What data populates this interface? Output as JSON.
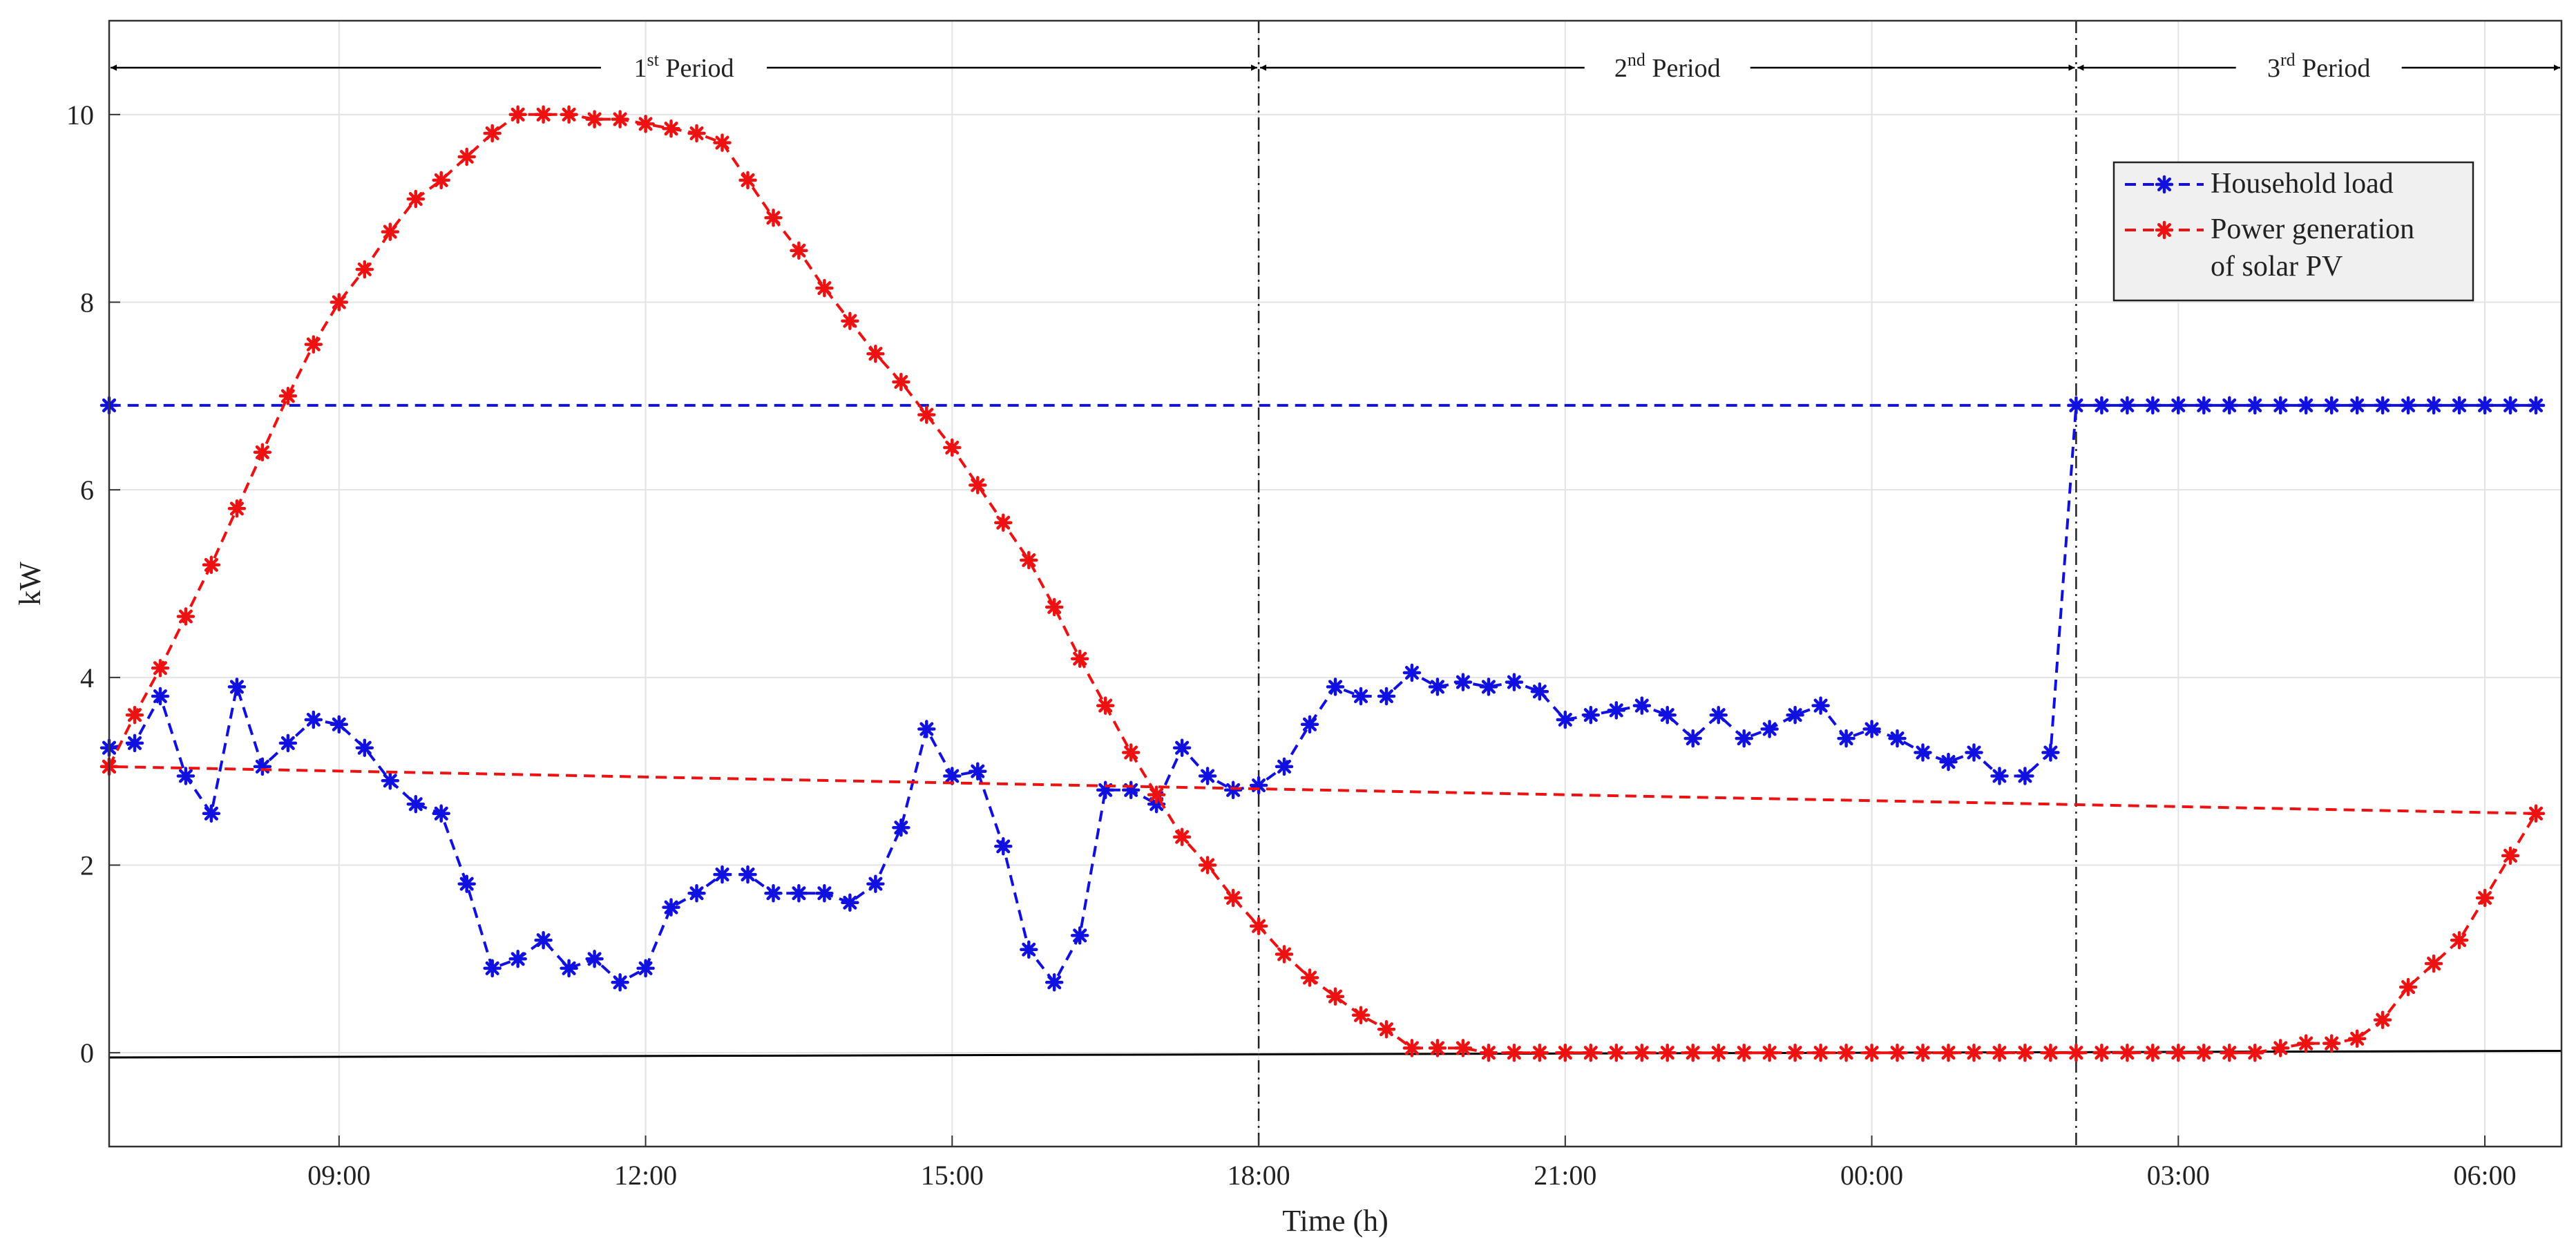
{
  "chart_data": {
    "type": "line",
    "xlabel": "Time (h)",
    "ylabel": "kW",
    "x_unit": "time of day (h), 06:45 to 06:45 next day",
    "xlim": [
      "06:45",
      "06:45"
    ],
    "ylim": [
      -1,
      11
    ],
    "x_ticks": [
      "09:00",
      "12:00",
      "15:00",
      "18:00",
      "21:00",
      "00:00",
      "03:00",
      "06:00"
    ],
    "y_ticks": [
      "0",
      "2",
      "4",
      "6",
      "8",
      "10"
    ],
    "grid": true,
    "legend_position": "top-right",
    "x": [
      "06:45",
      "07:00",
      "07:15",
      "07:30",
      "07:45",
      "08:00",
      "08:15",
      "08:30",
      "08:45",
      "09:00",
      "09:15",
      "09:30",
      "09:45",
      "10:00",
      "10:15",
      "10:30",
      "10:45",
      "11:00",
      "11:15",
      "11:30",
      "11:45",
      "12:00",
      "12:15",
      "12:30",
      "12:45",
      "13:00",
      "13:15",
      "13:30",
      "13:45",
      "14:00",
      "14:15",
      "14:30",
      "14:45",
      "15:00",
      "15:15",
      "15:30",
      "15:45",
      "16:00",
      "16:15",
      "16:30",
      "16:45",
      "17:00",
      "17:15",
      "17:30",
      "17:45",
      "18:00",
      "18:15",
      "18:30",
      "18:45",
      "19:00",
      "19:15",
      "19:30",
      "19:45",
      "20:00",
      "20:15",
      "20:30",
      "20:45",
      "21:00",
      "21:15",
      "21:30",
      "21:45",
      "22:00",
      "22:15",
      "22:30",
      "22:45",
      "23:00",
      "23:15",
      "23:30",
      "23:45",
      "00:00",
      "00:15",
      "00:30",
      "00:45",
      "01:00",
      "01:15",
      "01:30",
      "01:45",
      "02:00",
      "02:15",
      "02:30",
      "02:45",
      "03:00",
      "03:15",
      "03:30",
      "03:45",
      "04:00",
      "04:15",
      "04:30",
      "04:45",
      "05:00",
      "05:15",
      "05:30",
      "05:45",
      "06:00",
      "06:15",
      "06:30",
      "06:45"
    ],
    "series": [
      {
        "name": "Household load",
        "color": "#1010e0",
        "values": [
          3.25,
          3.3,
          3.8,
          2.95,
          2.55,
          3.9,
          3.05,
          3.3,
          3.55,
          3.5,
          3.25,
          2.9,
          2.65,
          2.55,
          1.8,
          0.9,
          1.0,
          1.2,
          0.9,
          1.0,
          0.75,
          0.9,
          1.55,
          1.7,
          1.9,
          1.9,
          1.7,
          1.7,
          1.7,
          1.6,
          1.8,
          2.4,
          3.45,
          2.95,
          3.0,
          2.2,
          1.1,
          0.75,
          1.25,
          2.8,
          2.8,
          2.65,
          3.25,
          2.95,
          2.8,
          2.85,
          3.05,
          3.5,
          3.9,
          3.8,
          3.8,
          4.05,
          3.9,
          3.95,
          3.9,
          3.95,
          3.85,
          3.55,
          3.6,
          3.65,
          3.7,
          3.6,
          3.35,
          3.6,
          3.35,
          3.45,
          3.6,
          3.7,
          3.35,
          3.45,
          3.35,
          3.2,
          3.1,
          3.2,
          2.95,
          2.95,
          3.2,
          6.9,
          6.9,
          6.9,
          6.9,
          6.9,
          6.9,
          6.9,
          6.9,
          6.9,
          6.9,
          6.9,
          6.9,
          6.9,
          6.9,
          6.9,
          6.9,
          6.9,
          6.9,
          6.9,
          6.9
        ]
      },
      {
        "name": "Power generation of solar PV",
        "color": "#ee1111",
        "values": [
          3.05,
          3.6,
          4.1,
          4.65,
          5.2,
          5.8,
          6.4,
          7.0,
          7.55,
          8.0,
          8.35,
          8.75,
          9.1,
          9.3,
          9.55,
          9.8,
          10.0,
          10.0,
          10.0,
          9.95,
          9.95,
          9.9,
          9.85,
          9.8,
          9.7,
          9.3,
          8.9,
          8.55,
          8.15,
          7.8,
          7.45,
          7.15,
          6.8,
          6.45,
          6.05,
          5.65,
          5.25,
          4.75,
          4.2,
          3.7,
          3.2,
          2.75,
          2.3,
          2.0,
          1.65,
          1.35,
          1.05,
          0.8,
          0.6,
          0.4,
          0.25,
          0.05,
          0.05,
          0.05,
          0.0,
          0.0,
          0.0,
          0.0,
          0.0,
          0.0,
          0.0,
          0.0,
          0.0,
          0.0,
          0.0,
          0.0,
          0.0,
          0.0,
          0.0,
          0.0,
          0.0,
          0.0,
          0.0,
          0.0,
          0.0,
          0.0,
          0.0,
          0.0,
          0.0,
          0.0,
          0.0,
          0.0,
          0.0,
          0.0,
          0.0,
          0.05,
          0.1,
          0.1,
          0.15,
          0.35,
          0.7,
          0.95,
          1.2,
          1.65,
          2.1,
          2.55,
          3.05
        ]
      }
    ],
    "baseline": {
      "y_start": -0.05,
      "y_end": 0.02
    },
    "dividers": [
      "18:00",
      "02:00"
    ],
    "periods": [
      {
        "label": "1",
        "sup": "st",
        "suffix": " Period",
        "from": "06:45",
        "to": "18:00"
      },
      {
        "label": "2",
        "sup": "nd",
        "suffix": " Period",
        "from": "18:00",
        "to": "02:00"
      },
      {
        "label": "3",
        "sup": "rd",
        "suffix": " Period",
        "from": "02:00",
        "to": "06:45"
      }
    ],
    "legend": [
      {
        "lines": [
          "Household load"
        ],
        "series": 0
      },
      {
        "lines": [
          "Power generation",
          "of solar PV"
        ],
        "series": 1
      }
    ]
  }
}
